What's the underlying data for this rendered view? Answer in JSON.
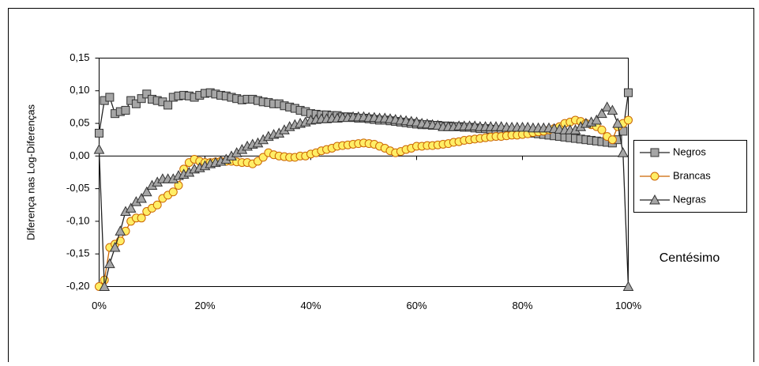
{
  "chart_data": {
    "type": "line",
    "y_label": "Diferença nas Log-Diferenças",
    "annotation": "Centésimo",
    "x": [
      0,
      1,
      2,
      3,
      4,
      5,
      6,
      7,
      8,
      9,
      10,
      11,
      12,
      13,
      14,
      15,
      16,
      17,
      18,
      19,
      20,
      21,
      22,
      23,
      24,
      25,
      26,
      27,
      28,
      29,
      30,
      31,
      32,
      33,
      34,
      35,
      36,
      37,
      38,
      39,
      40,
      41,
      42,
      43,
      44,
      45,
      46,
      47,
      48,
      49,
      50,
      51,
      52,
      53,
      54,
      55,
      56,
      57,
      58,
      59,
      60,
      61,
      62,
      63,
      64,
      65,
      66,
      67,
      68,
      69,
      70,
      71,
      72,
      73,
      74,
      75,
      76,
      77,
      78,
      79,
      80,
      81,
      82,
      83,
      84,
      85,
      86,
      87,
      88,
      89,
      90,
      91,
      92,
      93,
      94,
      95,
      96,
      97,
      98,
      99,
      100
    ],
    "xlim": [
      0,
      100
    ],
    "xticks": [
      {
        "value": 0,
        "label": "0%"
      },
      {
        "value": 20,
        "label": "20%"
      },
      {
        "value": 40,
        "label": "40%"
      },
      {
        "value": 60,
        "label": "60%"
      },
      {
        "value": 80,
        "label": "80%"
      },
      {
        "value": 100,
        "label": "100%"
      }
    ],
    "ylim": [
      -0.2,
      0.15
    ],
    "yticks": [
      {
        "value": -0.2,
        "label": "-0,20"
      },
      {
        "value": -0.15,
        "label": "-0,15"
      },
      {
        "value": -0.1,
        "label": "-0,10"
      },
      {
        "value": -0.05,
        "label": "-0,05"
      },
      {
        "value": 0,
        "label": "0,00"
      },
      {
        "value": 0.05,
        "label": "0,05"
      },
      {
        "value": 0.1,
        "label": "0,10"
      },
      {
        "value": 0.15,
        "label": "0,15"
      }
    ],
    "legend": "right",
    "series": [
      {
        "name": "Negros",
        "color": "#a6a6a6",
        "line_color": "#222222",
        "marker_stroke": "#333333",
        "marker": "square",
        "values": [
          0.035,
          0.085,
          0.09,
          0.065,
          0.068,
          0.07,
          0.085,
          0.08,
          0.088,
          0.095,
          0.087,
          0.085,
          0.083,
          0.078,
          0.09,
          0.092,
          0.093,
          0.092,
          0.09,
          0.093,
          0.096,
          0.097,
          0.095,
          0.093,
          0.092,
          0.09,
          0.088,
          0.086,
          0.087,
          0.087,
          0.085,
          0.083,
          0.082,
          0.08,
          0.08,
          0.077,
          0.075,
          0.073,
          0.07,
          0.068,
          0.065,
          0.064,
          0.063,
          0.063,
          0.062,
          0.062,
          0.06,
          0.06,
          0.059,
          0.058,
          0.058,
          0.057,
          0.056,
          0.055,
          0.055,
          0.054,
          0.053,
          0.052,
          0.051,
          0.05,
          0.049,
          0.048,
          0.048,
          0.047,
          0.047,
          0.046,
          0.046,
          0.045,
          0.045,
          0.044,
          0.044,
          0.043,
          0.042,
          0.042,
          0.041,
          0.04,
          0.04,
          0.039,
          0.038,
          0.038,
          0.037,
          0.036,
          0.035,
          0.034,
          0.033,
          0.032,
          0.031,
          0.03,
          0.029,
          0.028,
          0.027,
          0.026,
          0.025,
          0.024,
          0.023,
          0.022,
          0.021,
          0.02,
          0.025,
          0.038,
          0.097
        ]
      },
      {
        "name": "Brancas",
        "color": "#ffee66",
        "line_color": "#cc6600",
        "marker_stroke": "#cc6600",
        "marker": "circle",
        "values": [
          -0.2,
          -0.19,
          -0.14,
          -0.135,
          -0.13,
          -0.115,
          -0.1,
          -0.095,
          -0.095,
          -0.085,
          -0.08,
          -0.075,
          -0.065,
          -0.06,
          -0.055,
          -0.045,
          -0.02,
          -0.01,
          -0.005,
          -0.008,
          -0.01,
          -0.01,
          -0.009,
          -0.008,
          -0.008,
          -0.008,
          -0.009,
          -0.01,
          -0.01,
          -0.012,
          -0.008,
          -0.002,
          0.005,
          0.002,
          0,
          -0.001,
          -0.002,
          -0.002,
          0,
          0,
          0.003,
          0.005,
          0.008,
          0.01,
          0.012,
          0.015,
          0.016,
          0.017,
          0.018,
          0.019,
          0.02,
          0.019,
          0.018,
          0.015,
          0.012,
          0.008,
          0.005,
          0.007,
          0.01,
          0.012,
          0.015,
          0.015,
          0.016,
          0.016,
          0.017,
          0.018,
          0.019,
          0.021,
          0.022,
          0.024,
          0.025,
          0.026,
          0.027,
          0.028,
          0.029,
          0.03,
          0.03,
          0.031,
          0.032,
          0.032,
          0.033,
          0.034,
          0.036,
          0.037,
          0.038,
          0.04,
          0.042,
          0.045,
          0.05,
          0.052,
          0.055,
          0.053,
          0.05,
          0.048,
          0.045,
          0.04,
          0.03,
          0.025,
          0.045,
          0.05,
          0.055
        ]
      },
      {
        "name": "Negras",
        "color": "#a6a6a6",
        "line_color": "#222222",
        "marker_stroke": "#333333",
        "marker": "triangle",
        "values": [
          0.01,
          -0.2,
          -0.165,
          -0.14,
          -0.115,
          -0.085,
          -0.08,
          -0.07,
          -0.065,
          -0.055,
          -0.045,
          -0.04,
          -0.035,
          -0.035,
          -0.035,
          -0.03,
          -0.028,
          -0.025,
          -0.02,
          -0.018,
          -0.015,
          -0.012,
          -0.01,
          -0.008,
          -0.005,
          0,
          0.005,
          0.01,
          0.015,
          0.018,
          0.02,
          0.025,
          0.03,
          0.033,
          0.035,
          0.04,
          0.045,
          0.048,
          0.05,
          0.052,
          0.055,
          0.056,
          0.057,
          0.057,
          0.058,
          0.058,
          0.059,
          0.059,
          0.06,
          0.06,
          0.06,
          0.059,
          0.059,
          0.058,
          0.058,
          0.057,
          0.056,
          0.055,
          0.054,
          0.053,
          0.052,
          0.05,
          0.049,
          0.048,
          0.047,
          0.045,
          0.045,
          0.045,
          0.046,
          0.046,
          0.046,
          0.046,
          0.045,
          0.045,
          0.045,
          0.045,
          0.045,
          0.044,
          0.044,
          0.044,
          0.044,
          0.044,
          0.043,
          0.043,
          0.043,
          0.043,
          0.042,
          0.041,
          0.04,
          0.04,
          0.04,
          0.045,
          0.05,
          0.052,
          0.055,
          0.065,
          0.075,
          0.07,
          0.05,
          0.005,
          -0.2
        ]
      }
    ]
  }
}
